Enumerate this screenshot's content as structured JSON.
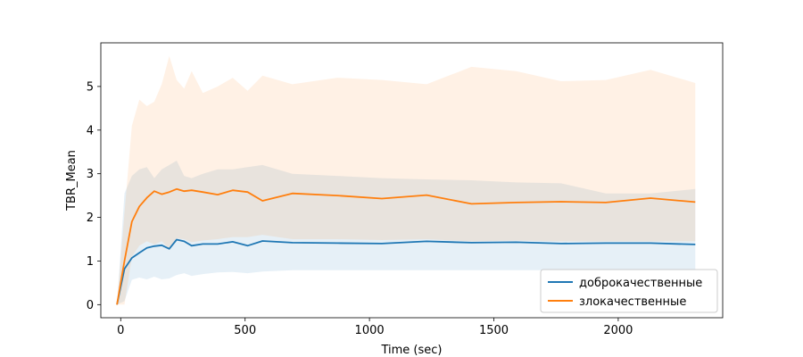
{
  "chart_data": {
    "type": "line",
    "title": "",
    "xlabel": "Time (sec)",
    "ylabel": "TBR_Mean",
    "xlim": [
      -80,
      2420
    ],
    "ylim": [
      -0.3,
      6.0
    ],
    "xticks": [
      0,
      500,
      1000,
      1500,
      2000
    ],
    "yticks": [
      0,
      1,
      2,
      3,
      4,
      5
    ],
    "grid": false,
    "legend_position": "bottom-right",
    "series": [
      {
        "name": "доброкачественные",
        "color": "#1f77b4",
        "band_color": "#1f77b4",
        "x": [
          -15,
          15,
          45,
          75,
          105,
          135,
          165,
          195,
          225,
          255,
          285,
          330,
          390,
          450,
          510,
          570,
          690,
          870,
          1050,
          1230,
          1410,
          1590,
          1770,
          1950,
          2130,
          2310
        ],
        "values": [
          0.0,
          0.82,
          1.07,
          1.19,
          1.3,
          1.34,
          1.36,
          1.28,
          1.49,
          1.45,
          1.35,
          1.39,
          1.39,
          1.44,
          1.35,
          1.46,
          1.42,
          1.41,
          1.4,
          1.45,
          1.42,
          1.43,
          1.4,
          1.41,
          1.41,
          1.38
        ],
        "lower": [
          0.0,
          0.08,
          0.57,
          0.62,
          0.58,
          0.64,
          0.58,
          0.6,
          0.68,
          0.72,
          0.66,
          0.7,
          0.74,
          0.75,
          0.72,
          0.76,
          0.79,
          0.79,
          0.79,
          0.79,
          0.79,
          0.79,
          0.79,
          0.79,
          0.79,
          0.79
        ],
        "upper": [
          0.0,
          2.55,
          2.95,
          3.1,
          3.15,
          2.9,
          3.1,
          3.2,
          3.3,
          2.95,
          2.9,
          3.0,
          3.1,
          3.1,
          3.15,
          3.2,
          3.0,
          2.95,
          2.9,
          2.87,
          2.85,
          2.8,
          2.78,
          2.55,
          2.55,
          2.65
        ]
      },
      {
        "name": "злокачественные",
        "color": "#ff7f0e",
        "band_color": "#ff7f0e",
        "x": [
          -15,
          15,
          45,
          75,
          105,
          135,
          165,
          195,
          225,
          255,
          285,
          330,
          390,
          450,
          510,
          570,
          690,
          870,
          1050,
          1230,
          1410,
          1590,
          1770,
          1950,
          2130,
          2310
        ],
        "values": [
          0.0,
          1.0,
          1.9,
          2.25,
          2.45,
          2.6,
          2.53,
          2.58,
          2.65,
          2.6,
          2.62,
          2.58,
          2.52,
          2.62,
          2.58,
          2.38,
          2.55,
          2.5,
          2.43,
          2.51,
          2.31,
          2.34,
          2.36,
          2.34,
          2.44,
          2.35
        ],
        "lower": [
          0.0,
          0.0,
          1.1,
          1.35,
          1.45,
          1.38,
          1.45,
          1.28,
          1.52,
          1.5,
          1.43,
          1.47,
          1.5,
          1.55,
          1.55,
          1.6,
          1.5,
          1.5,
          1.48,
          1.5,
          1.45,
          1.47,
          1.45,
          1.45,
          1.45,
          1.45
        ],
        "upper": [
          0.0,
          2.1,
          4.1,
          4.7,
          4.55,
          4.65,
          5.05,
          5.7,
          5.15,
          4.95,
          5.35,
          4.85,
          5.0,
          5.2,
          4.9,
          5.25,
          5.05,
          5.2,
          5.15,
          5.05,
          5.45,
          5.35,
          5.12,
          5.15,
          5.38,
          5.08
        ]
      }
    ]
  }
}
